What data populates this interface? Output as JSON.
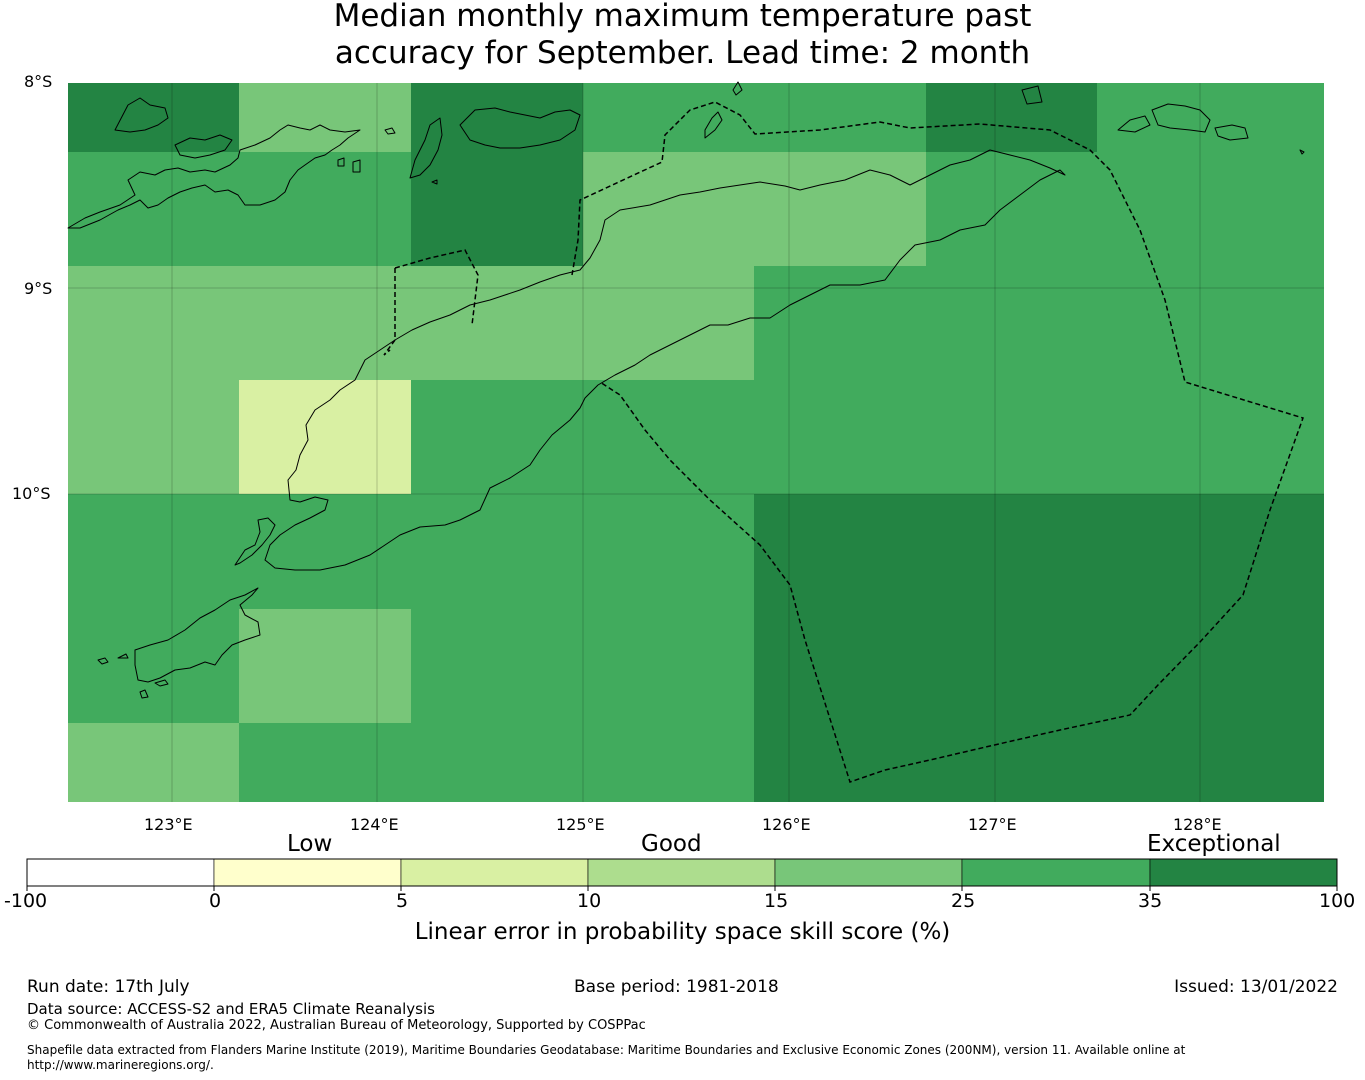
{
  "title": {
    "line1": "Median monthly maximum temperature past",
    "line2": "accuracy for September. Lead time: 2 month"
  },
  "map": {
    "lat_labels": [
      "8°S",
      "9°S",
      "10°S"
    ],
    "lon_labels": [
      "123°E",
      "124°E",
      "125°E",
      "126°E",
      "127°E",
      "128°E"
    ],
    "grid_rows": [
      [
        35,
        15,
        35,
        25,
        25,
        35,
        25
      ],
      [
        25,
        25,
        35,
        15,
        15,
        25,
        25
      ],
      [
        15,
        15,
        15,
        15,
        25,
        25,
        25
      ],
      [
        15,
        5,
        25,
        25,
        25,
        25,
        25
      ],
      [
        25,
        25,
        25,
        25,
        35,
        35,
        35
      ],
      [
        25,
        15,
        25,
        25,
        35,
        35,
        35
      ],
      [
        15,
        25,
        25,
        25,
        35,
        35,
        35
      ]
    ]
  },
  "colorbar": {
    "categories": [
      "Low",
      "Good",
      "Exceptional"
    ],
    "ticks": [
      "-100",
      "0",
      "5",
      "10",
      "15",
      "25",
      "35",
      "100"
    ],
    "colors": [
      "#ffffff",
      "#ffffcc",
      "#d9f0a3",
      "#addd8e",
      "#78c679",
      "#41ab5d",
      "#238443"
    ],
    "title": "Linear error in probability space skill score (%)"
  },
  "footer": {
    "run_date": "Run date: 17th July",
    "base_period": "Base period: 1981-2018",
    "issued": "Issued: 13/01/2022",
    "data_source": "Data source: ACCESS-S2 and ERA5 Climate Reanalysis",
    "copyright": "© Commonwealth of Australia 2022, Australian Bureau of Meteorology, Supported by COSPPac",
    "shapefile_line1": "Shapefile data extracted from Flanders Marine Institute (2019), Maritime Boundaries Geodatabase: Maritime Boundaries and Exclusive Economic Zones (200NM), version 11. Available online at",
    "shapefile_line2": "http://www.marineregions.org/."
  }
}
